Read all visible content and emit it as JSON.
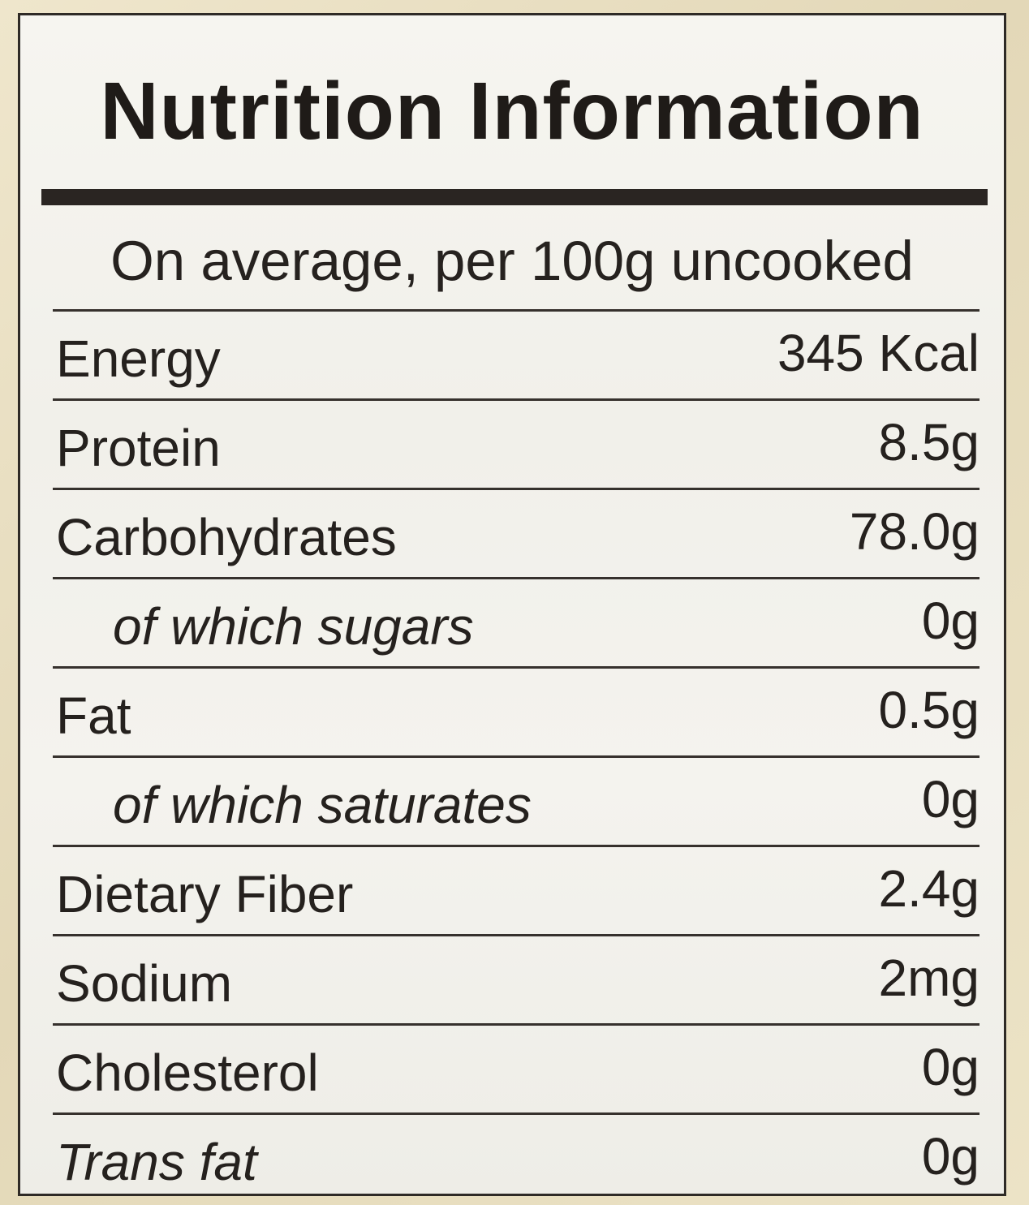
{
  "title": "Nutrition Information",
  "subtitle": "On average, per 100g uncooked",
  "rows": [
    {
      "name": "Energy",
      "value": "345 Kcal"
    },
    {
      "name": "Protein",
      "value": "8.5g"
    },
    {
      "name": "Carbohydrates",
      "value": "78.0g"
    },
    {
      "name": "of which sugars",
      "value": "0g"
    },
    {
      "name": "Fat",
      "value": "0.5g"
    },
    {
      "name": "of which saturates",
      "value": "0g"
    },
    {
      "name": "Dietary Fiber",
      "value": "2.4g"
    },
    {
      "name": "Sodium",
      "value": "2mg"
    },
    {
      "name": "Cholesterol",
      "value": "0g"
    },
    {
      "name": "Trans fat",
      "value": "0g"
    }
  ]
}
